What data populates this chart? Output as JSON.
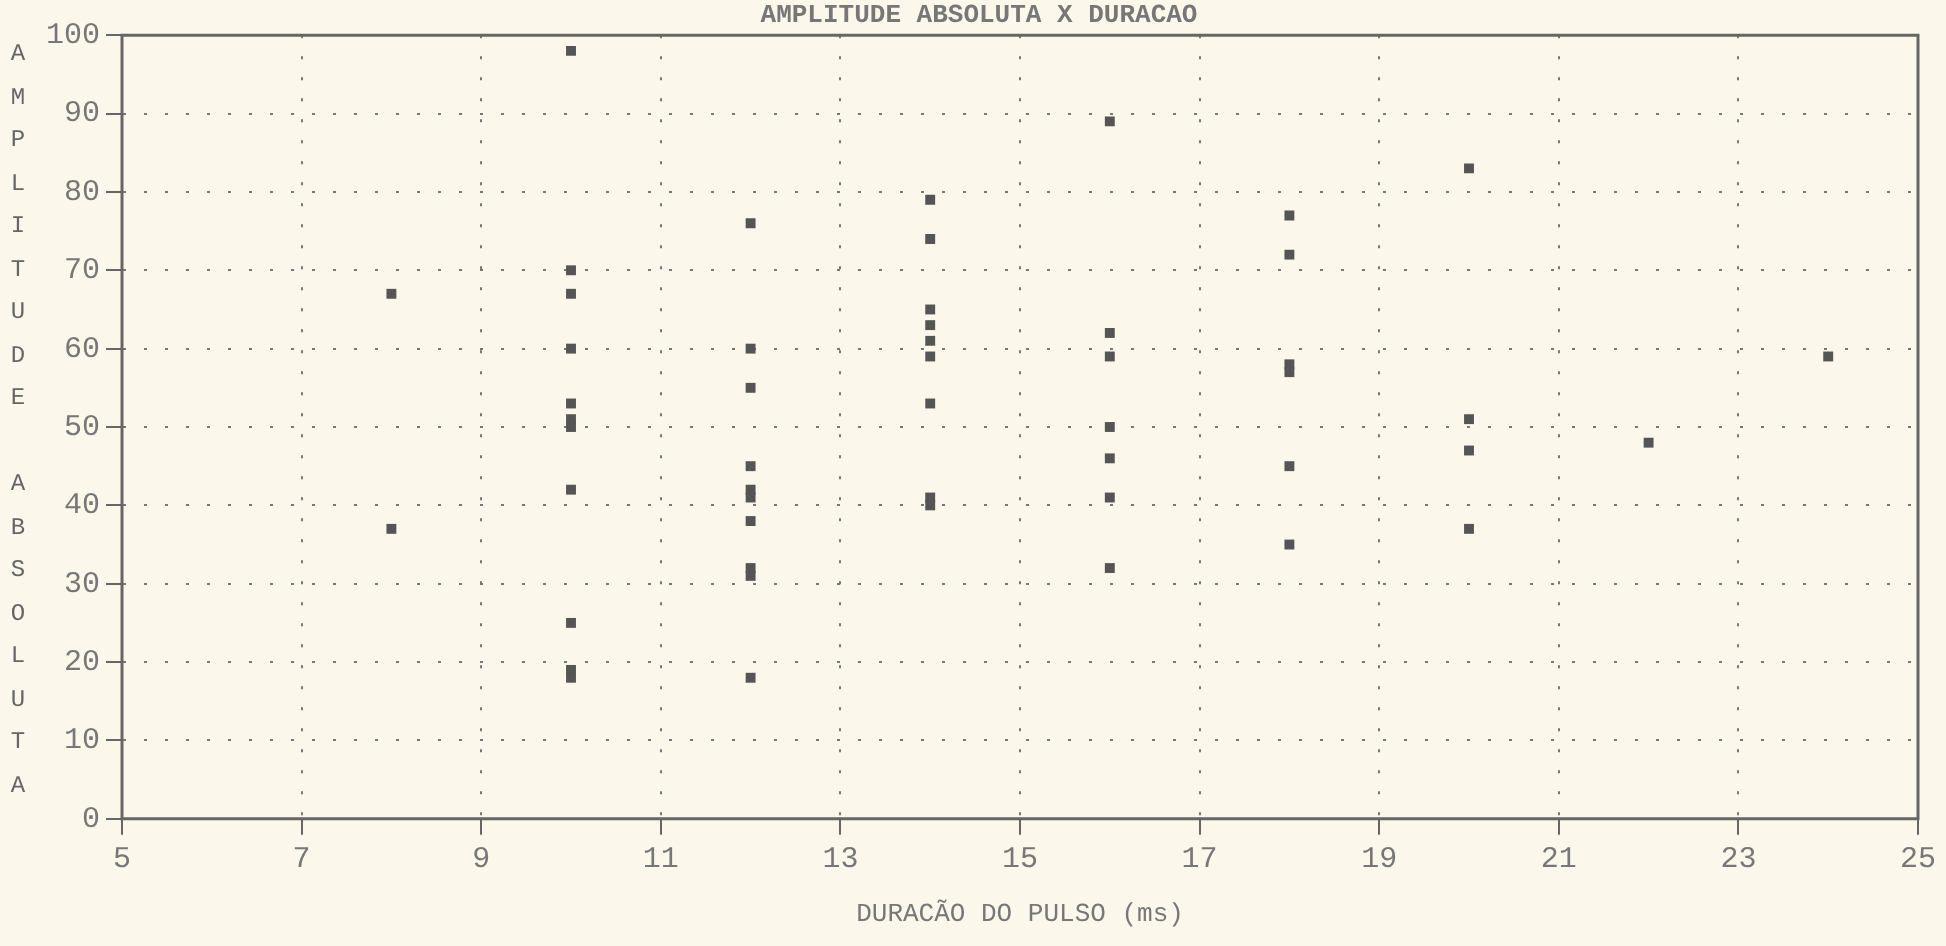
{
  "chart_data": {
    "type": "scatter",
    "title": "AMPLITUDE ABSOLUTA X DURACAO",
    "xlabel": "DURACÃO DO PULSO (ms)",
    "ylabel": "AMPLITUDE ABSOLUTA",
    "series": [
      {
        "color": "#555555",
        "x": [
          8,
          8,
          10,
          10,
          10,
          10,
          10,
          10,
          10,
          10,
          10,
          10,
          10,
          12,
          12,
          12,
          12,
          12,
          12,
          12,
          12,
          12,
          12,
          14,
          14,
          14,
          14,
          14,
          14,
          14,
          14,
          14,
          16,
          16,
          16,
          16,
          16,
          16,
          16,
          18,
          18,
          18,
          18,
          18,
          18,
          20,
          20,
          20,
          20,
          22,
          24
        ],
        "values": [
          67,
          37,
          98,
          70,
          67,
          60,
          53,
          51,
          50,
          42,
          25,
          19,
          18,
          76,
          60,
          55,
          45,
          42,
          41,
          38,
          32,
          31,
          18,
          79,
          74,
          65,
          63,
          61,
          59,
          53,
          41,
          40,
          89,
          62,
          59,
          50,
          46,
          41,
          32,
          77,
          72,
          58,
          57,
          45,
          35,
          83,
          51,
          47,
          37,
          48,
          59
        ]
      }
    ],
    "xlim": [
      5,
      25
    ],
    "xticks": [
      5,
      7,
      9,
      11,
      13,
      15,
      17,
      19,
      21,
      23,
      25
    ],
    "ylim": [
      0,
      100
    ],
    "yticks": [
      0,
      10,
      20,
      30,
      40,
      50,
      60,
      70,
      80,
      90,
      100
    ],
    "grid": true,
    "marker": "square",
    "legend": false
  }
}
